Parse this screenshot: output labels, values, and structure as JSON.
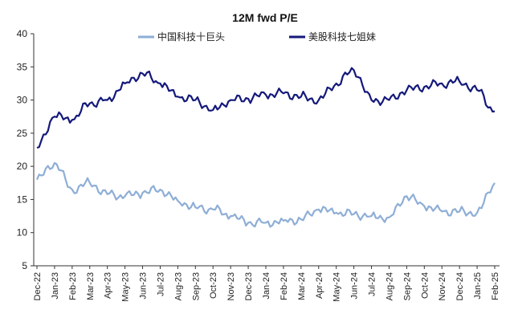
{
  "chart_data": {
    "type": "line",
    "title": "12M fwd P/E",
    "xlabel": "",
    "ylabel": "",
    "ylim": [
      5,
      40
    ],
    "yticks": [
      5,
      10,
      15,
      20,
      25,
      30,
      35,
      40
    ],
    "x": [
      "Dec-22",
      "Jan-23",
      "Feb-23",
      "Mar-23",
      "Apr-23",
      "May-23",
      "Jun-23",
      "Jul-23",
      "Aug-23",
      "Sep-23",
      "Oct-23",
      "Nov-23",
      "Dec-23",
      "Jan-24",
      "Feb-24",
      "Mar-24",
      "Apr-24",
      "May-24",
      "Jun-24",
      "Jul-24",
      "Aug-24",
      "Sep-24",
      "Oct-24",
      "Nov-24",
      "Dec-24",
      "Jan-25",
      "Feb-25"
    ],
    "legend_position": "top",
    "grid": false,
    "series": [
      {
        "name": "中国科技十巨头",
        "color": "#8eaed6",
        "values": [
          18.0,
          20.5,
          16.5,
          17.5,
          15.8,
          15.5,
          16.0,
          16.5,
          14.8,
          13.8,
          13.5,
          12.5,
          11.5,
          11.5,
          11.8,
          12.0,
          13.5,
          13.0,
          12.8,
          12.5,
          12.3,
          15.5,
          14.0,
          13.2,
          13.2,
          13.0,
          17.5
        ]
      },
      {
        "name": "美股科技七姐妹",
        "color": "#14197a",
        "values": [
          22.8,
          27.5,
          27.0,
          29.5,
          30.0,
          32.5,
          34.0,
          32.5,
          30.5,
          30.0,
          28.5,
          30.0,
          30.2,
          30.8,
          31.0,
          30.5,
          30.0,
          32.5,
          34.5,
          30.0,
          30.0,
          31.5,
          32.0,
          32.5,
          32.8,
          31.5,
          28.3
        ]
      }
    ]
  }
}
